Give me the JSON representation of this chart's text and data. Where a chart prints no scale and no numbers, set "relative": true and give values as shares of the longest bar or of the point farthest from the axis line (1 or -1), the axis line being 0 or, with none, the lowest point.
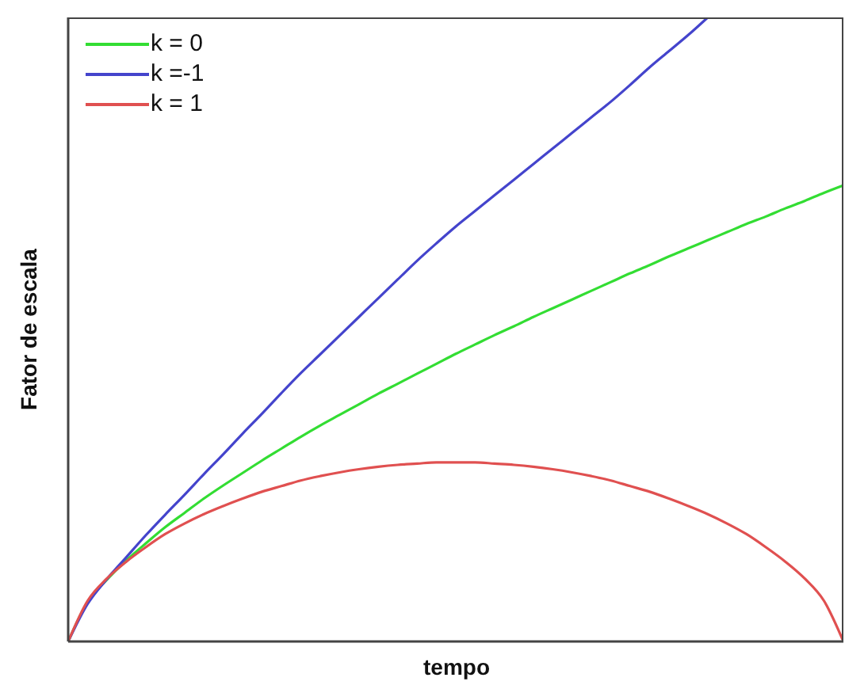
{
  "chart_data": {
    "type": "line",
    "xlabel": "tempo",
    "ylabel": "Fator de escala",
    "relative": true,
    "legend": "top left",
    "marker": "none",
    "line_style": "solid",
    "categories": [
      null,
      null,
      null,
      null,
      null,
      null,
      null,
      null,
      null,
      null,
      null,
      null,
      null,
      null,
      null,
      null,
      null,
      null,
      null,
      null,
      null,
      null,
      null,
      null,
      null,
      null,
      null,
      null,
      null,
      null,
      null,
      null,
      null,
      null,
      null,
      null,
      null,
      null,
      null,
      null,
      null
    ],
    "series": [
      {
        "name": "k = 0",
        "color": "#33dd33",
        "values": [
          0,
          0.063,
          0.099,
          0.13,
          0.157,
          0.183,
          0.206,
          0.229,
          0.25,
          0.27,
          0.29,
          0.309,
          0.328,
          0.346,
          0.363,
          0.38,
          0.397,
          0.413,
          0.429,
          0.445,
          0.461,
          0.476,
          0.491,
          0.505,
          0.52,
          0.534,
          0.548,
          0.562,
          0.576,
          0.59,
          0.603,
          0.617,
          0.63,
          0.643,
          0.656,
          0.669,
          0.681,
          0.694,
          0.706,
          0.719,
          0.731
        ]
      },
      {
        "name": "k =-1",
        "color": "#4444cc",
        "values": [
          0,
          0.06,
          0.1,
          0.135,
          0.17,
          0.203,
          0.235,
          0.268,
          0.3,
          0.333,
          0.365,
          0.398,
          0.43,
          0.46,
          0.49,
          0.52,
          0.55,
          0.58,
          0.61,
          0.638,
          0.665,
          0.69,
          0.715,
          0.74,
          0.765,
          0.79,
          0.815,
          0.84,
          0.865,
          0.892,
          0.92,
          0.946,
          0.972,
          1.0,
          null,
          null,
          null,
          null,
          null,
          null,
          null
        ]
      },
      {
        "name": "k = 1",
        "color": "#e05050",
        "values": [
          0,
          0.065,
          0.101,
          0.128,
          0.151,
          0.172,
          0.189,
          0.204,
          0.217,
          0.229,
          0.24,
          0.249,
          0.258,
          0.265,
          0.271,
          0.276,
          0.28,
          0.283,
          0.285,
          0.287,
          0.287,
          0.287,
          0.285,
          0.283,
          0.28,
          0.276,
          0.271,
          0.265,
          0.258,
          0.249,
          0.24,
          0.229,
          0.217,
          0.204,
          0.189,
          0.172,
          0.151,
          0.128,
          0.101,
          0.065,
          0
        ]
      }
    ]
  }
}
